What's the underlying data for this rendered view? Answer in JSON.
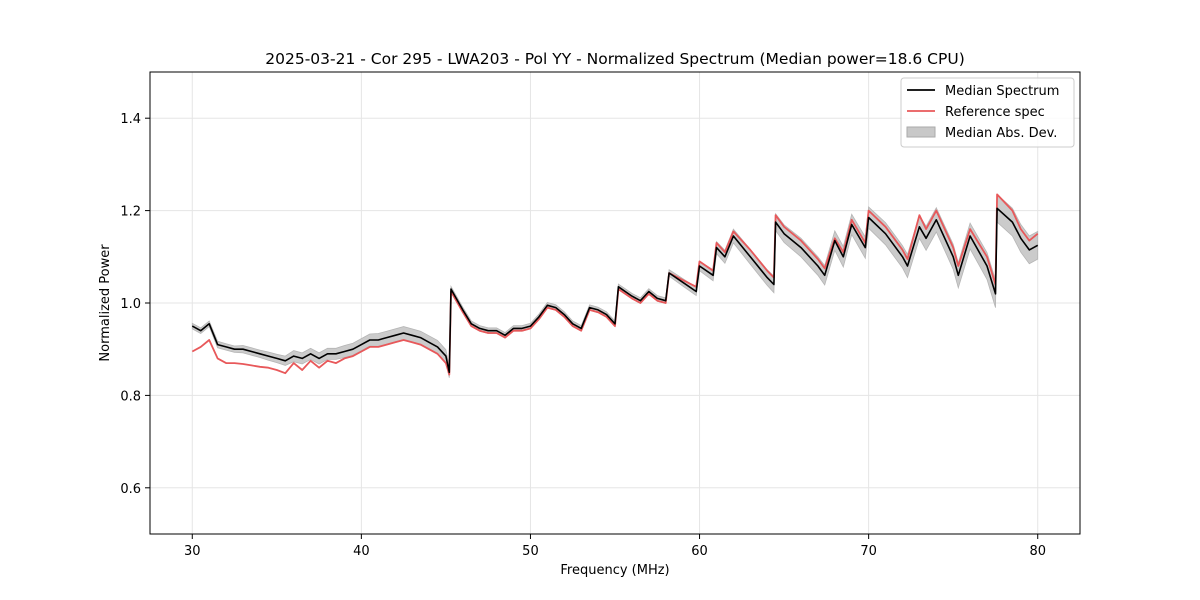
{
  "chart_data": {
    "type": "line",
    "title": "2025-03-21 - Cor 295 - LWA203 - Pol YY - Normalized Spectrum (Median power=18.6 CPU)",
    "xlabel": "Frequency (MHz)",
    "ylabel": "Normalized Power",
    "xlim": [
      27.5,
      82.5
    ],
    "ylim": [
      0.5,
      1.5
    ],
    "xticks": [
      30,
      40,
      50,
      60,
      70,
      80
    ],
    "yticks": [
      0.6,
      0.8,
      1.0,
      1.2,
      1.4
    ],
    "xtick_labels": [
      "30",
      "40",
      "50",
      "60",
      "70",
      "80"
    ],
    "ytick_labels": [
      "0.6",
      "0.8",
      "1.0",
      "1.2",
      "1.4"
    ],
    "grid": true,
    "legend_position": "top-right",
    "legend": [
      "Median Spectrum",
      "Reference spec",
      "Median Abs. Dev."
    ],
    "colors": {
      "median": "#000000",
      "reference": "#e8585a",
      "mad": "#c8c8c8",
      "overlap": "#8b1a1a"
    },
    "series": [
      {
        "name": "Median Spectrum",
        "x": [
          30,
          30.5,
          31,
          31.5,
          32,
          32.5,
          33,
          33.5,
          34,
          34.5,
          35,
          35.5,
          36,
          36.5,
          37,
          37.5,
          38,
          38.5,
          39,
          39.5,
          40,
          40.5,
          41,
          41.5,
          42,
          42.5,
          43,
          43.5,
          44,
          44.5,
          45,
          45.2,
          45.3,
          46,
          46.5,
          47,
          47.5,
          48,
          48.5,
          49,
          49.5,
          50,
          50.5,
          51,
          51.5,
          52,
          52.5,
          53,
          53.5,
          54,
          54.5,
          55,
          55.2,
          56,
          56.5,
          57,
          57.5,
          58,
          58.2,
          59,
          59.8,
          60,
          60.8,
          61,
          61.5,
          62,
          63,
          64,
          64.4,
          64.5,
          65,
          66,
          67,
          67.4,
          68,
          68.5,
          69,
          69.8,
          70,
          71,
          72,
          72.3,
          73,
          73.4,
          74,
          75,
          75.3,
          76,
          77,
          77.5,
          77.6,
          78.5,
          79,
          79.5,
          80
        ],
        "values": [
          0.95,
          0.94,
          0.955,
          0.91,
          0.905,
          0.9,
          0.9,
          0.895,
          0.89,
          0.885,
          0.88,
          0.875,
          0.885,
          0.88,
          0.89,
          0.88,
          0.89,
          0.89,
          0.895,
          0.9,
          0.91,
          0.92,
          0.92,
          0.925,
          0.93,
          0.935,
          0.93,
          0.925,
          0.915,
          0.905,
          0.885,
          0.85,
          1.03,
          0.985,
          0.955,
          0.945,
          0.94,
          0.94,
          0.93,
          0.945,
          0.945,
          0.95,
          0.97,
          0.995,
          0.99,
          0.975,
          0.955,
          0.945,
          0.99,
          0.985,
          0.975,
          0.955,
          1.035,
          1.015,
          1.005,
          1.025,
          1.01,
          1.005,
          1.065,
          1.045,
          1.025,
          1.08,
          1.06,
          1.12,
          1.1,
          1.145,
          1.1,
          1.055,
          1.04,
          1.175,
          1.15,
          1.12,
          1.08,
          1.06,
          1.135,
          1.1,
          1.17,
          1.12,
          1.185,
          1.15,
          1.1,
          1.08,
          1.165,
          1.14,
          1.18,
          1.1,
          1.06,
          1.145,
          1.08,
          1.02,
          1.205,
          1.175,
          1.14,
          1.115,
          1.125
        ]
      },
      {
        "name": "Reference spec",
        "x": [
          30,
          30.5,
          31,
          31.5,
          32,
          32.5,
          33,
          33.5,
          34,
          34.5,
          35,
          35.5,
          36,
          36.5,
          37,
          37.5,
          38,
          38.5,
          39,
          39.5,
          40,
          40.5,
          41,
          41.5,
          42,
          42.5,
          43,
          43.5,
          44,
          44.5,
          45,
          45.2,
          45.3,
          46,
          46.5,
          47,
          47.5,
          48,
          48.5,
          49,
          49.5,
          50,
          50.5,
          51,
          51.5,
          52,
          52.5,
          53,
          53.5,
          54,
          54.5,
          55,
          55.2,
          56,
          56.5,
          57,
          57.5,
          58,
          58.2,
          59,
          59.8,
          60,
          60.8,
          61,
          61.5,
          62,
          63,
          64,
          64.4,
          64.5,
          65,
          66,
          67,
          67.4,
          68,
          68.5,
          69,
          69.8,
          70,
          71,
          72,
          72.3,
          73,
          73.4,
          74,
          75,
          75.3,
          76,
          77,
          77.5,
          77.6,
          78.5,
          79,
          79.5,
          80
        ],
        "values": [
          0.895,
          0.905,
          0.92,
          0.88,
          0.87,
          0.87,
          0.868,
          0.865,
          0.862,
          0.86,
          0.855,
          0.848,
          0.87,
          0.855,
          0.875,
          0.86,
          0.875,
          0.87,
          0.88,
          0.885,
          0.895,
          0.905,
          0.905,
          0.91,
          0.915,
          0.92,
          0.915,
          0.91,
          0.9,
          0.89,
          0.87,
          0.845,
          1.025,
          0.98,
          0.95,
          0.94,
          0.935,
          0.935,
          0.925,
          0.94,
          0.94,
          0.945,
          0.965,
          0.99,
          0.985,
          0.97,
          0.95,
          0.94,
          0.985,
          0.98,
          0.97,
          0.95,
          1.03,
          1.01,
          1.0,
          1.02,
          1.005,
          1.0,
          1.065,
          1.05,
          1.035,
          1.09,
          1.07,
          1.13,
          1.11,
          1.155,
          1.115,
          1.07,
          1.055,
          1.19,
          1.165,
          1.135,
          1.095,
          1.075,
          1.14,
          1.11,
          1.18,
          1.13,
          1.2,
          1.165,
          1.115,
          1.095,
          1.19,
          1.16,
          1.2,
          1.12,
          1.08,
          1.16,
          1.1,
          1.04,
          1.235,
          1.2,
          1.16,
          1.135,
          1.15
        ]
      }
    ],
    "mad_band": {
      "name": "Median Abs. Dev.",
      "x": [
        30,
        30.5,
        31,
        31.5,
        32,
        32.5,
        33,
        33.5,
        34,
        34.5,
        35,
        35.5,
        36,
        36.5,
        37,
        37.5,
        38,
        38.5,
        39,
        39.5,
        40,
        40.5,
        41,
        41.5,
        42,
        42.5,
        43,
        43.5,
        44,
        44.5,
        45,
        45.2,
        45.3,
        46,
        46.5,
        47,
        47.5,
        48,
        48.5,
        49,
        49.5,
        50,
        50.5,
        51,
        51.5,
        52,
        52.5,
        53,
        53.5,
        54,
        54.5,
        55,
        55.2,
        56,
        56.5,
        57,
        57.5,
        58,
        58.2,
        59,
        59.8,
        60,
        60.8,
        61,
        61.5,
        62,
        63,
        64,
        64.4,
        64.5,
        65,
        66,
        67,
        67.4,
        68,
        68.5,
        69,
        69.8,
        70,
        71,
        72,
        72.3,
        73,
        73.4,
        74,
        75,
        75.3,
        76,
        77,
        77.5,
        77.6,
        78.5,
        79,
        79.5,
        80
      ],
      "half_width": [
        0.006,
        0.006,
        0.006,
        0.007,
        0.007,
        0.007,
        0.008,
        0.008,
        0.008,
        0.009,
        0.009,
        0.01,
        0.012,
        0.012,
        0.012,
        0.012,
        0.012,
        0.012,
        0.013,
        0.013,
        0.013,
        0.013,
        0.014,
        0.014,
        0.014,
        0.014,
        0.014,
        0.014,
        0.014,
        0.014,
        0.014,
        0.012,
        0.006,
        0.006,
        0.006,
        0.006,
        0.006,
        0.006,
        0.006,
        0.006,
        0.006,
        0.006,
        0.006,
        0.006,
        0.006,
        0.006,
        0.006,
        0.006,
        0.006,
        0.006,
        0.006,
        0.006,
        0.006,
        0.006,
        0.006,
        0.006,
        0.006,
        0.006,
        0.007,
        0.008,
        0.009,
        0.01,
        0.012,
        0.013,
        0.014,
        0.015,
        0.016,
        0.017,
        0.018,
        0.018,
        0.019,
        0.02,
        0.02,
        0.021,
        0.021,
        0.022,
        0.022,
        0.023,
        0.023,
        0.024,
        0.024,
        0.025,
        0.025,
        0.026,
        0.026,
        0.027,
        0.027,
        0.028,
        0.029,
        0.03,
        0.03,
        0.03,
        0.03,
        0.03,
        0.03
      ]
    }
  }
}
